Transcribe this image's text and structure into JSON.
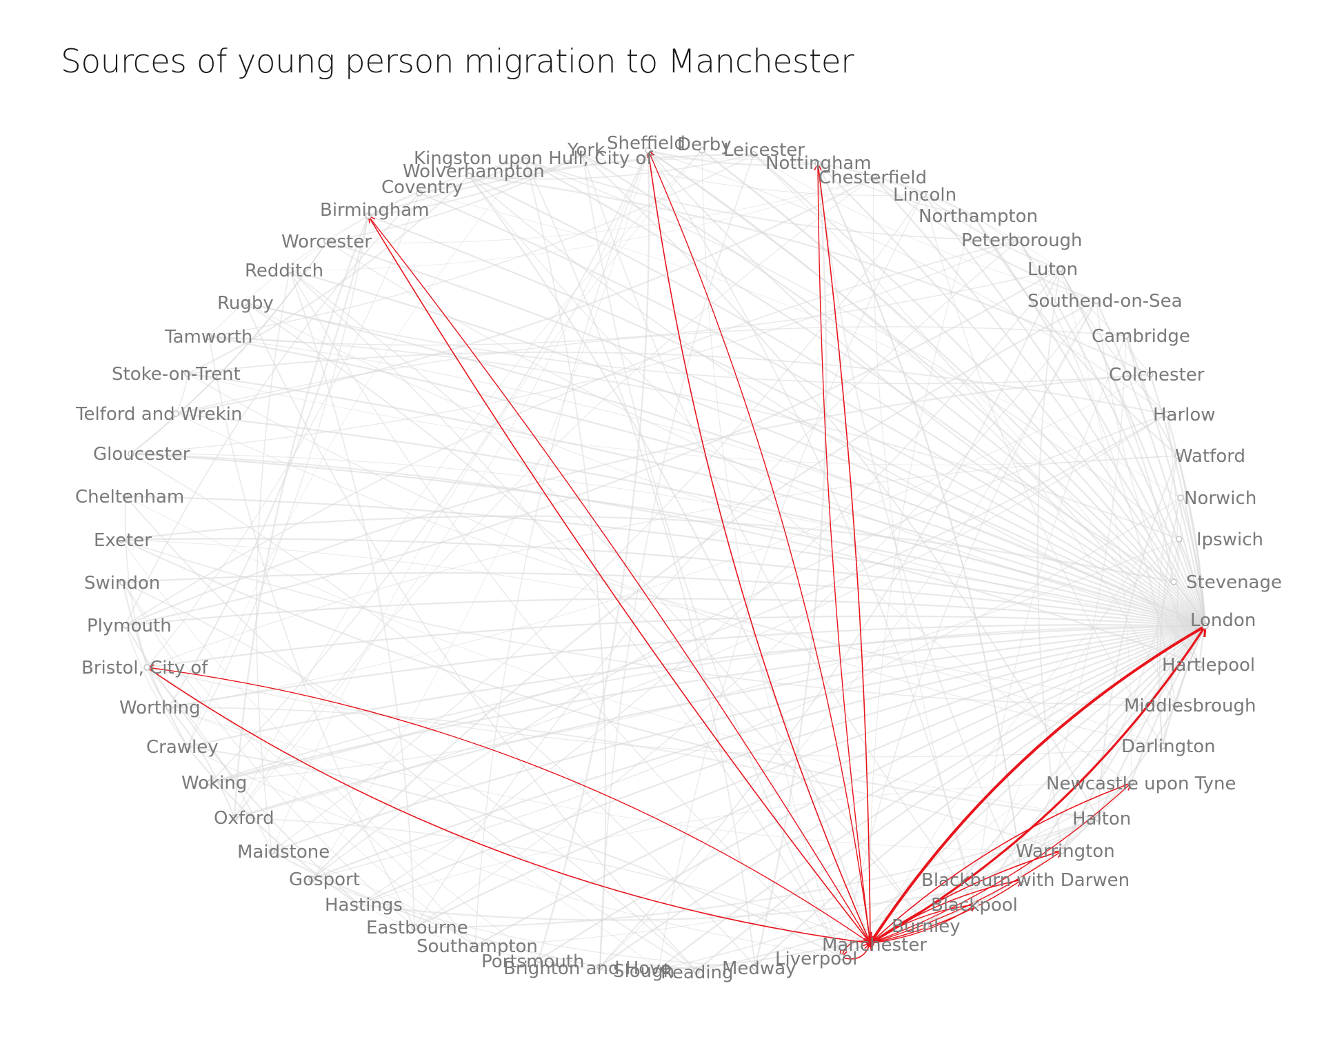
{
  "title": "Sources of young person migration to Manchester",
  "colors": {
    "highlight": "#e8141c",
    "background_edge": "#d9d9d9",
    "label": "#7a7a7a",
    "node": "#c4c4c4"
  },
  "nodes": [
    "York",
    "Sheffield",
    "Derby",
    "Leicester",
    "Nottingham",
    "Chesterfield",
    "Lincoln",
    "Northampton",
    "Peterborough",
    "Luton",
    "Southend-on-Sea",
    "Cambridge",
    "Colchester",
    "Harlow",
    "Watford",
    "Norwich",
    "Ipswich",
    "Stevenage",
    "London",
    "Hartlepool",
    "Middlesbrough",
    "Darlington",
    "Newcastle upon Tyne",
    "Halton",
    "Warrington",
    "Blackburn with Darwen",
    "Blackpool",
    "Burnley",
    "Manchester",
    "Liverpool",
    "Medway",
    "Reading",
    "Slough",
    "Brighton and Hove",
    "Portsmouth",
    "Southampton",
    "Eastbourne",
    "Hastings",
    "Gosport",
    "Maidstone",
    "Oxford",
    "Woking",
    "Crawley",
    "Worthing",
    "Bristol, City of",
    "Plymouth",
    "Swindon",
    "Exeter",
    "Cheltenham",
    "Gloucester",
    "Telford and Wrekin",
    "Stoke-on-Trent",
    "Tamworth",
    "Rugby",
    "Redditch",
    "Worcester",
    "Birmingham",
    "Coventry",
    "Wolverhampton",
    "Kingston upon Hull, City of"
  ],
  "highlighted_flows": {
    "target": "Manchester",
    "sources": [
      "London",
      "Birmingham",
      "Bristol, City of",
      "Sheffield",
      "Nottingham",
      "Newcastle upon Tyne",
      "Warrington",
      "Blackburn with Darwen",
      "Blackpool",
      "Liverpool"
    ],
    "strong_source": "London"
  }
}
